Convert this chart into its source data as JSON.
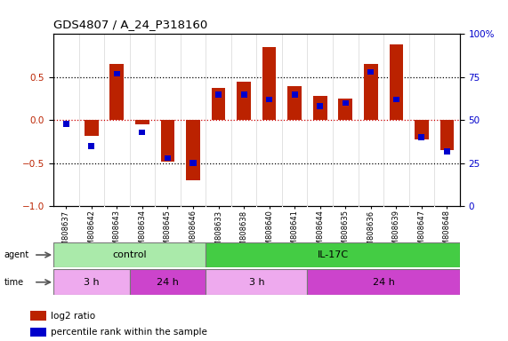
{
  "title": "GDS4807 / A_24_P318160",
  "samples": [
    "GSM808637",
    "GSM808642",
    "GSM808643",
    "GSM808634",
    "GSM808645",
    "GSM808646",
    "GSM808633",
    "GSM808638",
    "GSM808640",
    "GSM808641",
    "GSM808644",
    "GSM808635",
    "GSM808636",
    "GSM808639",
    "GSM808647",
    "GSM808648"
  ],
  "log2_ratio": [
    0.0,
    -0.18,
    0.65,
    -0.05,
    -0.48,
    -0.7,
    0.38,
    0.45,
    0.85,
    0.4,
    0.28,
    0.25,
    0.65,
    0.88,
    -0.22,
    -0.35
  ],
  "percentile": [
    48,
    35,
    77,
    43,
    28,
    25,
    65,
    65,
    62,
    65,
    58,
    60,
    78,
    62,
    40,
    32
  ],
  "bar_color": "#bb2200",
  "dot_color": "#0000cc",
  "ylim": [
    -1,
    1
  ],
  "right_ylim": [
    0,
    100
  ],
  "yticks_left": [
    -1,
    -0.5,
    0,
    0.5
  ],
  "yticks_right": [
    0,
    25,
    50,
    75,
    100
  ],
  "hlines_dotted": [
    0.5,
    -0.5
  ],
  "hline_zero": 0,
  "agent_labels": [
    {
      "text": "control",
      "start": 0,
      "end": 6,
      "color": "#aaeaaa"
    },
    {
      "text": "IL-17C",
      "start": 6,
      "end": 16,
      "color": "#44cc44"
    }
  ],
  "time_labels": [
    {
      "text": "3 h",
      "start": 0,
      "end": 3,
      "color": "#eeaaee"
    },
    {
      "text": "24 h",
      "start": 3,
      "end": 6,
      "color": "#cc44cc"
    },
    {
      "text": "3 h",
      "start": 6,
      "end": 10,
      "color": "#eeaaee"
    },
    {
      "text": "24 h",
      "start": 10,
      "end": 16,
      "color": "#cc44cc"
    }
  ],
  "legend_items": [
    {
      "label": "log2 ratio",
      "color": "#bb2200"
    },
    {
      "label": "percentile rank within the sample",
      "color": "#0000cc"
    }
  ],
  "right_tick_color": "#0000cc",
  "left_tick_color": "#bb2200",
  "bar_width": 0.55,
  "blue_bar_width": 0.25,
  "blue_bar_height": 0.07
}
